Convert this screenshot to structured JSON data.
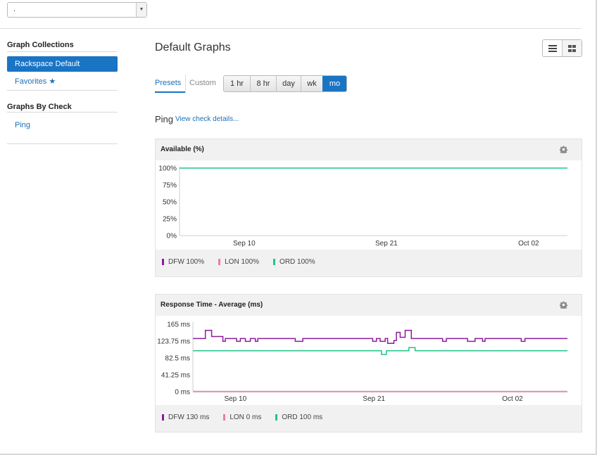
{
  "account": {
    "value": ".",
    "arrow": "▼"
  },
  "sidebar": {
    "collections_heading": "Graph Collections",
    "active_item": "Rackspace Default",
    "favorites_label": "Favorites",
    "favorites_icon": "star-icon",
    "by_check_heading": "Graphs By Check",
    "check_item": "Ping"
  },
  "main": {
    "title": "Default Graphs",
    "view_icons": [
      "list-view-icon",
      "grid-view-icon"
    ],
    "tabs": {
      "presets": "Presets",
      "custom": "Custom"
    },
    "ranges": [
      "1 hr",
      "8 hr",
      "day",
      "wk",
      "mo"
    ],
    "active_range": "mo",
    "check_name": "Ping",
    "check_link": "View check details..."
  },
  "colors": {
    "DFW": "#8c1c9c",
    "LON": "#ec7ba8",
    "ORD": "#22c48a",
    "accent": "#1a74c4"
  },
  "chart_data": [
    {
      "type": "line",
      "title": "Available (%)",
      "x_tick_labels": [
        "Sep 10",
        "Sep 21",
        "Oct 02"
      ],
      "y_tick_labels": [
        "100%",
        "75%",
        "50%",
        "25%",
        "0%"
      ],
      "ylim": [
        0,
        100
      ],
      "x_range": [
        0,
        30
      ],
      "x_ticks": [
        5,
        16,
        27
      ],
      "series": [
        {
          "name": "ORD",
          "color": "#22c48a",
          "x": [
            0,
            30
          ],
          "values": [
            100,
            100
          ]
        }
      ],
      "legend": [
        {
          "name": "DFW",
          "value": "DFW 100%",
          "color": "#8c1c9c"
        },
        {
          "name": "LON",
          "value": "LON 100%",
          "color": "#ec7ba8"
        },
        {
          "name": "ORD",
          "value": "ORD 100%",
          "color": "#22c48a"
        }
      ]
    },
    {
      "type": "line",
      "title": "Response Time - Average (ms)",
      "x_tick_labels": [
        "Sep 10",
        "Sep 21",
        "Oct 02"
      ],
      "y_tick_labels": [
        "165 ms",
        "123.75 ms",
        "82.5 ms",
        "41.25 ms",
        "0 ms"
      ],
      "ylim": [
        0,
        165
      ],
      "x_range": [
        0,
        30
      ],
      "x_ticks": [
        3.4,
        14.5,
        25.6
      ],
      "series": [
        {
          "name": "DFW",
          "color": "#8c1c9c",
          "x": [
            0,
            1,
            1,
            1.5,
            1.5,
            2.4,
            2.4,
            2.6,
            2.6,
            3.5,
            3.5,
            3.8,
            3.8,
            4.2,
            4.2,
            4.6,
            4.6,
            5.0,
            5.0,
            5.2,
            5.2,
            8.2,
            8.2,
            8.8,
            8.8,
            14.4,
            14.4,
            14.7,
            14.7,
            15.0,
            15.0,
            15.4,
            15.4,
            15.6,
            15.6,
            16.1,
            16.1,
            16.3,
            16.3,
            16.6,
            16.6,
            17.0,
            17.0,
            17.5,
            17.5,
            17.8,
            17.8,
            20.0,
            20.0,
            20.3,
            20.3,
            22.0,
            22.0,
            22.6,
            22.6,
            23.2,
            23.2,
            23.4,
            23.4,
            26.3,
            26.3,
            26.6,
            26.6,
            30
          ],
          "values": [
            130,
            130,
            150,
            150,
            135,
            135,
            123,
            123,
            130,
            130,
            123,
            123,
            130,
            130,
            123,
            123,
            130,
            130,
            123,
            123,
            130,
            130,
            123,
            123,
            130,
            130,
            123,
            123,
            130,
            130,
            123,
            123,
            130,
            130,
            118,
            118,
            125,
            125,
            145,
            145,
            133,
            133,
            150,
            150,
            130,
            130,
            130,
            130,
            123,
            123,
            130,
            130,
            123,
            123,
            130,
            130,
            123,
            123,
            130,
            130,
            123,
            123,
            130,
            130
          ]
        },
        {
          "name": "ORD",
          "color": "#22c48a",
          "x": [
            0,
            15.1,
            15.1,
            15.5,
            15.5,
            17.3,
            17.3,
            17.8,
            17.8,
            30
          ],
          "values": [
            100,
            100,
            91,
            91,
            100,
            100,
            108,
            108,
            100,
            100
          ]
        },
        {
          "name": "LON",
          "color": "#ec7ba8",
          "x": [
            0,
            30
          ],
          "values": [
            0,
            0
          ]
        }
      ],
      "legend": [
        {
          "name": "DFW",
          "value": "DFW 130 ms",
          "color": "#8c1c9c"
        },
        {
          "name": "LON",
          "value": "LON 0 ms",
          "color": "#ec7ba8"
        },
        {
          "name": "ORD",
          "value": "ORD 100 ms",
          "color": "#22c48a"
        }
      ]
    }
  ]
}
